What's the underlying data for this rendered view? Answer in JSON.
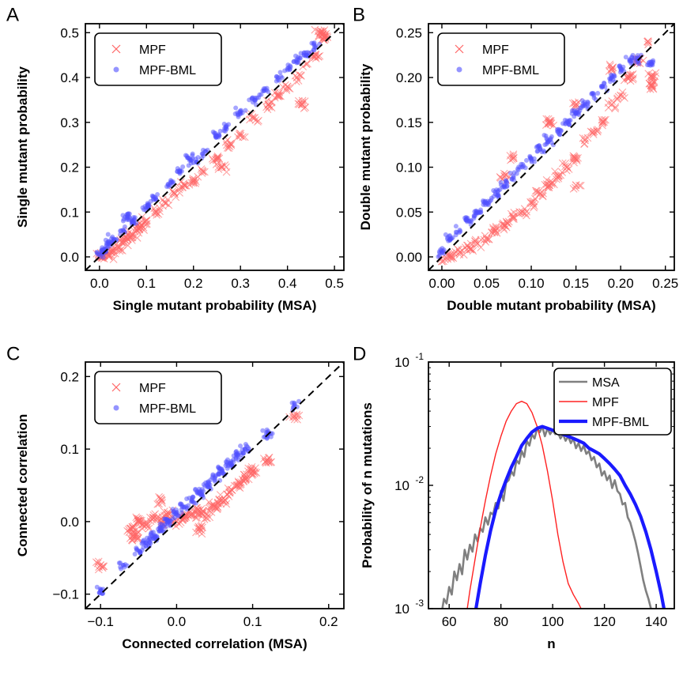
{
  "chart_data": [
    {
      "panel": "A",
      "type": "scatter",
      "xlabel": "Single mutant probability (MSA)",
      "ylabel": "Single mutant probability",
      "xlim": [
        -0.03,
        0.52
      ],
      "ylim": [
        -0.03,
        0.52
      ],
      "xticks": [
        "0.0",
        "0.1",
        "0.2",
        "0.3",
        "0.4",
        "0.5"
      ],
      "yticks": [
        "0.0",
        "0.1",
        "0.2",
        "0.3",
        "0.4",
        "0.5"
      ],
      "diagonal": true,
      "legend_position": "top-left",
      "series": [
        {
          "name": "MPF",
          "marker": "x",
          "color": "#ff6666",
          "points": [
            [
              0.0,
              0.0
            ],
            [
              0.005,
              -0.002
            ],
            [
              0.01,
              0.003
            ],
            [
              0.02,
              0.005
            ],
            [
              0.03,
              0.015
            ],
            [
              0.04,
              0.02
            ],
            [
              0.05,
              0.032
            ],
            [
              0.06,
              0.04
            ],
            [
              0.07,
              0.05
            ],
            [
              0.08,
              0.06
            ],
            [
              0.09,
              0.07
            ],
            [
              0.1,
              0.08
            ],
            [
              0.12,
              0.1
            ],
            [
              0.14,
              0.12
            ],
            [
              0.16,
              0.14
            ],
            [
              0.18,
              0.16
            ],
            [
              0.2,
              0.17
            ],
            [
              0.22,
              0.19
            ],
            [
              0.25,
              0.22
            ],
            [
              0.28,
              0.25
            ],
            [
              0.3,
              0.27
            ],
            [
              0.33,
              0.31
            ],
            [
              0.36,
              0.34
            ],
            [
              0.38,
              0.36
            ],
            [
              0.4,
              0.38
            ],
            [
              0.42,
              0.4
            ],
            [
              0.44,
              0.43
            ],
            [
              0.46,
              0.45
            ],
            [
              0.48,
              0.49
            ],
            [
              0.47,
              0.5
            ],
            [
              0.43,
              0.34
            ],
            [
              0.26,
              0.2
            ]
          ]
        },
        {
          "name": "MPF-BML",
          "marker": "o",
          "color": "#4d4dff",
          "points": [
            [
              0.0,
              0.005
            ],
            [
              0.01,
              0.015
            ],
            [
              0.02,
              0.03
            ],
            [
              0.03,
              0.04
            ],
            [
              0.05,
              0.06
            ],
            [
              0.07,
              0.08
            ],
            [
              0.1,
              0.11
            ],
            [
              0.12,
              0.13
            ],
            [
              0.15,
              0.16
            ],
            [
              0.17,
              0.19
            ],
            [
              0.2,
              0.21
            ],
            [
              0.22,
              0.23
            ],
            [
              0.25,
              0.27
            ],
            [
              0.27,
              0.29
            ],
            [
              0.3,
              0.32
            ],
            [
              0.33,
              0.35
            ],
            [
              0.35,
              0.37
            ],
            [
              0.38,
              0.4
            ],
            [
              0.4,
              0.42
            ],
            [
              0.42,
              0.44
            ],
            [
              0.44,
              0.45
            ],
            [
              0.46,
              0.47
            ],
            [
              0.06,
              0.09
            ],
            [
              0.19,
              0.22
            ]
          ]
        }
      ]
    },
    {
      "panel": "B",
      "type": "scatter",
      "xlabel": "Double mutant probability (MSA)",
      "ylabel": "Double mutant probability",
      "xlim": [
        -0.015,
        0.26
      ],
      "ylim": [
        -0.015,
        0.26
      ],
      "xticks": [
        "0.00",
        "0.05",
        "0.10",
        "0.15",
        "0.20",
        "0.25"
      ],
      "yticks": [
        "0.00",
        "0.05",
        "0.10",
        "0.15",
        "0.20",
        "0.25"
      ],
      "diagonal": true,
      "legend_position": "top-left",
      "series": [
        {
          "name": "MPF",
          "marker": "x",
          "color": "#ff6666",
          "points": [
            [
              0.0,
              -0.005
            ],
            [
              0.01,
              0.0
            ],
            [
              0.02,
              0.005
            ],
            [
              0.03,
              0.01
            ],
            [
              0.04,
              0.015
            ],
            [
              0.05,
              0.02
            ],
            [
              0.06,
              0.03
            ],
            [
              0.07,
              0.035
            ],
            [
              0.08,
              0.045
            ],
            [
              0.09,
              0.05
            ],
            [
              0.1,
              0.06
            ],
            [
              0.11,
              0.07
            ],
            [
              0.12,
              0.08
            ],
            [
              0.13,
              0.09
            ],
            [
              0.14,
              0.1
            ],
            [
              0.15,
              0.11
            ],
            [
              0.16,
              0.13
            ],
            [
              0.17,
              0.14
            ],
            [
              0.18,
              0.15
            ],
            [
              0.19,
              0.17
            ],
            [
              0.2,
              0.18
            ],
            [
              0.21,
              0.2
            ],
            [
              0.22,
              0.22
            ],
            [
              0.23,
              0.24
            ],
            [
              0.235,
              0.2
            ],
            [
              0.235,
              0.19
            ],
            [
              0.19,
              0.21
            ],
            [
              0.08,
              0.11
            ],
            [
              0.12,
              0.15
            ],
            [
              0.15,
              0.17
            ],
            [
              0.07,
              0.09
            ],
            [
              0.15,
              0.08
            ]
          ]
        },
        {
          "name": "MPF-BML",
          "marker": "o",
          "color": "#4d4dff",
          "points": [
            [
              0.0,
              0.005
            ],
            [
              0.01,
              0.02
            ],
            [
              0.02,
              0.03
            ],
            [
              0.03,
              0.04
            ],
            [
              0.04,
              0.05
            ],
            [
              0.05,
              0.06
            ],
            [
              0.06,
              0.07
            ],
            [
              0.07,
              0.08
            ],
            [
              0.08,
              0.09
            ],
            [
              0.09,
              0.1
            ],
            [
              0.1,
              0.11
            ],
            [
              0.11,
              0.12
            ],
            [
              0.12,
              0.13
            ],
            [
              0.13,
              0.14
            ],
            [
              0.14,
              0.15
            ],
            [
              0.15,
              0.16
            ],
            [
              0.16,
              0.17
            ],
            [
              0.17,
              0.18
            ],
            [
              0.18,
              0.19
            ],
            [
              0.19,
              0.2
            ],
            [
              0.2,
              0.21
            ],
            [
              0.21,
              0.22
            ],
            [
              0.22,
              0.22
            ],
            [
              0.235,
              0.215
            ]
          ]
        }
      ]
    },
    {
      "panel": "C",
      "type": "scatter",
      "xlabel": "Connected correlation (MSA)",
      "ylabel": "Connected correlation",
      "xlim": [
        -0.12,
        0.22
      ],
      "ylim": [
        -0.12,
        0.22
      ],
      "xticks": [
        "−0.1",
        "0.0",
        "0.1",
        "0.2"
      ],
      "yticks": [
        "−0.1",
        "0.0",
        "0.1",
        "0.2"
      ],
      "diagonal": true,
      "legend_position": "top-left",
      "series": [
        {
          "name": "MPF",
          "marker": "x",
          "color": "#ff6666",
          "points": [
            [
              -0.1,
              -0.06
            ],
            [
              -0.06,
              -0.01
            ],
            [
              -0.05,
              0.0
            ],
            [
              -0.04,
              -0.005
            ],
            [
              -0.03,
              0.005
            ],
            [
              -0.02,
              0.0
            ],
            [
              -0.01,
              0.01
            ],
            [
              0.0,
              0.0
            ],
            [
              0.01,
              0.005
            ],
            [
              0.02,
              0.01
            ],
            [
              0.03,
              0.015
            ],
            [
              0.04,
              0.01
            ],
            [
              0.05,
              0.02
            ],
            [
              0.06,
              0.03
            ],
            [
              0.07,
              0.04
            ],
            [
              0.08,
              0.05
            ],
            [
              0.09,
              0.06
            ],
            [
              0.1,
              0.07
            ],
            [
              0.12,
              0.085
            ],
            [
              0.155,
              0.145
            ],
            [
              -0.02,
              0.03
            ],
            [
              0.03,
              -0.01
            ],
            [
              -0.055,
              -0.02
            ]
          ]
        },
        {
          "name": "MPF-BML",
          "marker": "o",
          "color": "#4d4dff",
          "points": [
            [
              -0.1,
              -0.095
            ],
            [
              -0.07,
              -0.06
            ],
            [
              -0.05,
              -0.04
            ],
            [
              -0.04,
              -0.03
            ],
            [
              -0.03,
              -0.02
            ],
            [
              -0.02,
              -0.01
            ],
            [
              -0.01,
              0.0
            ],
            [
              0.0,
              0.01
            ],
            [
              0.01,
              0.02
            ],
            [
              0.02,
              0.03
            ],
            [
              0.03,
              0.04
            ],
            [
              0.04,
              0.05
            ],
            [
              0.05,
              0.06
            ],
            [
              0.06,
              0.07
            ],
            [
              0.07,
              0.08
            ],
            [
              0.08,
              0.09
            ],
            [
              0.09,
              0.1
            ],
            [
              0.12,
              0.12
            ],
            [
              0.155,
              0.16
            ]
          ]
        }
      ]
    },
    {
      "panel": "D",
      "type": "line",
      "xlabel": "n",
      "ylabel": "Probability of n mutations",
      "xlim": [
        52,
        147
      ],
      "ylim": [
        0.001,
        0.1
      ],
      "yscale": "log",
      "xticks": [
        "60",
        "80",
        "100",
        "120",
        "140"
      ],
      "yticks": [
        "10",
        "10",
        "10"
      ],
      "ytick_exponents": [
        "-3",
        "-2",
        "-1"
      ],
      "legend_position": "top-right",
      "series": [
        {
          "name": "MSA",
          "color": "#808080",
          "width": 2.6,
          "x": [
            57,
            58,
            59,
            60,
            61,
            62,
            63,
            64,
            65,
            66,
            67,
            68,
            69,
            70,
            71,
            72,
            73,
            74,
            75,
            76,
            77,
            78,
            79,
            80,
            81,
            82,
            83,
            84,
            85,
            86,
            87,
            88,
            89,
            90,
            91,
            92,
            93,
            94,
            95,
            96,
            97,
            98,
            99,
            100,
            101,
            102,
            103,
            104,
            105,
            106,
            107,
            108,
            109,
            110,
            111,
            112,
            113,
            114,
            115,
            116,
            117,
            118,
            119,
            120,
            121,
            122,
            123,
            124,
            125,
            126,
            127,
            128,
            129,
            130,
            131,
            132,
            133,
            134,
            135,
            136,
            137,
            138,
            139
          ],
          "y": [
            0.0009,
            0.0012,
            0.0011,
            0.0015,
            0.0013,
            0.002,
            0.0017,
            0.0023,
            0.0019,
            0.003,
            0.0025,
            0.0033,
            0.0029,
            0.004,
            0.0035,
            0.0045,
            0.0042,
            0.0055,
            0.0048,
            0.006,
            0.0058,
            0.0072,
            0.0065,
            0.009,
            0.0075,
            0.0105,
            0.011,
            0.013,
            0.012,
            0.016,
            0.015,
            0.019,
            0.017,
            0.023,
            0.021,
            0.026,
            0.024,
            0.029,
            0.027,
            0.03,
            0.025,
            0.029,
            0.026,
            0.028,
            0.026,
            0.027,
            0.024,
            0.026,
            0.023,
            0.025,
            0.022,
            0.024,
            0.02,
            0.022,
            0.019,
            0.021,
            0.018,
            0.019,
            0.016,
            0.017,
            0.014,
            0.015,
            0.012,
            0.013,
            0.011,
            0.012,
            0.0095,
            0.011,
            0.009,
            0.0085,
            0.007,
            0.0072,
            0.0055,
            0.005,
            0.0042,
            0.0035,
            0.0028,
            0.0022,
            0.0017,
            0.0014,
            0.0012,
            0.001,
            0.0009
          ]
        },
        {
          "name": "MPF",
          "color": "#ff2222",
          "width": 1.4,
          "x": [
            67,
            68,
            70,
            72,
            74,
            76,
            78,
            80,
            82,
            84,
            86,
            88,
            90,
            92,
            94,
            96,
            98,
            100,
            102,
            104,
            106,
            108,
            110,
            111,
            112
          ],
          "y": [
            0.001,
            0.0014,
            0.0025,
            0.0045,
            0.0075,
            0.012,
            0.018,
            0.025,
            0.033,
            0.04,
            0.046,
            0.048,
            0.046,
            0.039,
            0.03,
            0.021,
            0.013,
            0.0075,
            0.004,
            0.0024,
            0.0016,
            0.0013,
            0.0011,
            0.001,
            0.0009
          ]
        },
        {
          "name": "MPF-BML",
          "color": "#1a1aff",
          "width": 4.2,
          "x": [
            70,
            71,
            72,
            74,
            76,
            78,
            80,
            82,
            84,
            86,
            88,
            90,
            92,
            94,
            96,
            98,
            100,
            102,
            104,
            106,
            108,
            110,
            112,
            114,
            116,
            118,
            120,
            122,
            124,
            126,
            128,
            130,
            132,
            134,
            136,
            138,
            140,
            142,
            143
          ],
          "y": [
            0.0009,
            0.0012,
            0.0016,
            0.0027,
            0.0043,
            0.0063,
            0.0085,
            0.011,
            0.014,
            0.017,
            0.021,
            0.024,
            0.027,
            0.029,
            0.03,
            0.029,
            0.028,
            0.027,
            0.026,
            0.025,
            0.024,
            0.023,
            0.022,
            0.02,
            0.019,
            0.018,
            0.0165,
            0.015,
            0.0135,
            0.012,
            0.01,
            0.0085,
            0.007,
            0.0056,
            0.0042,
            0.003,
            0.002,
            0.0013,
            0.001
          ]
        }
      ]
    }
  ]
}
